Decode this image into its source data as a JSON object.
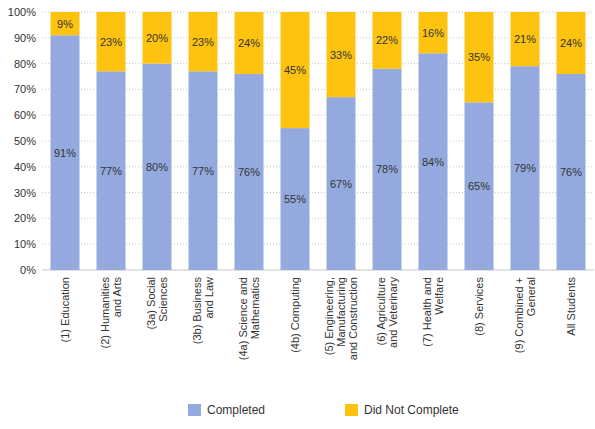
{
  "chart_data": {
    "type": "bar",
    "stacked": true,
    "grid": true,
    "legend": "bottom",
    "data_labels": true,
    "categories": [
      "(1) Education",
      "(2) Humanities and Arts",
      "(3a) Social Sciences",
      "(3b) Business and Law",
      "(4a) Science and Mathematics",
      "(4b) Computing",
      "(5) Engineering, Manufacturing and Construction",
      "(6) Agriculture and Veterinary",
      "(7) Health and Welfare",
      "(8) Services",
      "(9) Combined + General",
      "All Students"
    ],
    "series": [
      {
        "name": "Completed",
        "color": "#94aadf",
        "values": [
          91,
          77,
          80,
          77,
          76,
          55,
          67,
          78,
          84,
          65,
          79,
          76
        ],
        "value_labels": [
          "91%",
          "77%",
          "80%",
          "77%",
          "76%",
          "55%",
          "67%",
          "78%",
          "84%",
          "65%",
          "79%",
          "76%"
        ]
      },
      {
        "name": "Did Not Complete",
        "color": "#fdc30f",
        "values": [
          9,
          23,
          20,
          23,
          24,
          45,
          33,
          22,
          16,
          35,
          21,
          24
        ],
        "value_labels": [
          "9%",
          "23%",
          "20%",
          "23%",
          "24%",
          "45%",
          "33%",
          "22%",
          "16%",
          "35%",
          "21%",
          "24%"
        ]
      }
    ],
    "ylim": [
      0,
      100
    ],
    "yticks": [
      {
        "value": 0,
        "label": "0%"
      },
      {
        "value": 10,
        "label": "10%"
      },
      {
        "value": 20,
        "label": "20%"
      },
      {
        "value": 30,
        "label": "30%"
      },
      {
        "value": 40,
        "label": "40%"
      },
      {
        "value": 50,
        "label": "50%"
      },
      {
        "value": 60,
        "label": "60%"
      },
      {
        "value": 70,
        "label": "70%"
      },
      {
        "value": 80,
        "label": "80%"
      },
      {
        "value": 90,
        "label": "90%"
      },
      {
        "value": 100,
        "label": "100%"
      }
    ]
  }
}
